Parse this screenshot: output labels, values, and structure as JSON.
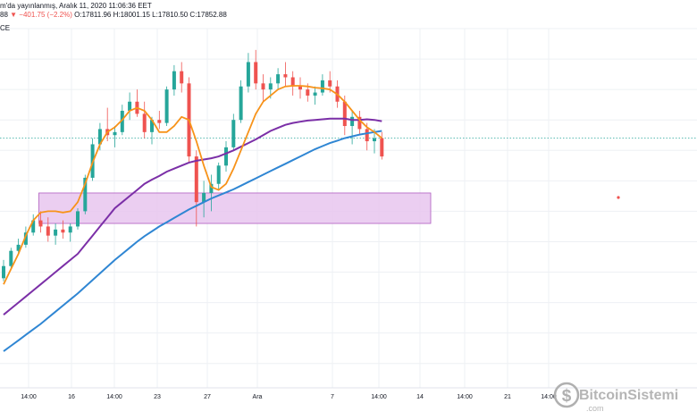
{
  "header": {
    "line1": "m'da yayınlanmış, Aralık 11, 2020 11:06:36 EET",
    "close_tail": "88",
    "change_arrow": "▼",
    "change": "−401.75 (−2.2%)",
    "ohlc": "O:17811.96 H:18001.15 L:17810.50 C:17852.88",
    "line3": "CE"
  },
  "colors": {
    "up": "#26a69a",
    "down": "#ef5350",
    "ma_fast": "#f7931a",
    "ma_mid": "#7b2fa7",
    "ma_slow": "#2f86d3",
    "zone_fill": "#e8c6ee",
    "zone_stroke": "#b05cc0",
    "price_line": "#26a69a"
  },
  "chart_data": {
    "type": "line",
    "x_tick_labels": [
      "14:00",
      "16",
      "14:00",
      "23",
      "27",
      "Ara",
      "7",
      "14:00",
      "14",
      "14:00",
      "21",
      "14:00"
    ],
    "candles": [
      [
        16400,
        16700,
        16350,
        16600
      ],
      [
        16600,
        16900,
        16550,
        16850
      ],
      [
        16850,
        17050,
        16800,
        16950
      ],
      [
        16950,
        17250,
        16900,
        17150
      ],
      [
        17150,
        17450,
        17100,
        17350
      ],
      [
        17350,
        17500,
        17150,
        17250
      ],
      [
        17250,
        17400,
        17000,
        17100
      ],
      [
        17100,
        17300,
        16950,
        17200
      ],
      [
        17200,
        17350,
        17050,
        17150
      ],
      [
        17150,
        17300,
        17000,
        17250
      ],
      [
        17250,
        17550,
        17200,
        17500
      ],
      [
        17500,
        18100,
        17450,
        18050
      ],
      [
        18050,
        18700,
        18000,
        18600
      ],
      [
        18600,
        18950,
        18500,
        18850
      ],
      [
        18850,
        19200,
        18650,
        18750
      ],
      [
        18750,
        18900,
        18550,
        18800
      ],
      [
        18800,
        19250,
        18750,
        19150
      ],
      [
        19150,
        19450,
        19000,
        19300
      ],
      [
        19300,
        19500,
        19050,
        19100
      ],
      [
        19100,
        19300,
        18700,
        18800
      ],
      [
        18800,
        19050,
        18600,
        19000
      ],
      [
        19000,
        19150,
        18850,
        18950
      ],
      [
        18950,
        19550,
        18900,
        19500
      ],
      [
        19500,
        19900,
        19400,
        19800
      ],
      [
        19800,
        19950,
        19450,
        19600
      ],
      [
        19600,
        19700,
        18300,
        18400
      ],
      [
        18400,
        18500,
        17250,
        17650
      ],
      [
        17650,
        18000,
        17400,
        17800
      ],
      [
        17800,
        18100,
        17500,
        17950
      ],
      [
        17950,
        18300,
        17850,
        18250
      ],
      [
        18250,
        18650,
        18150,
        18550
      ],
      [
        18550,
        19100,
        18500,
        19000
      ],
      [
        19000,
        19650,
        18950,
        19550
      ],
      [
        19550,
        20100,
        19450,
        19950
      ],
      [
        19950,
        20150,
        19500,
        19600
      ],
      [
        19600,
        19750,
        19300,
        19500
      ],
      [
        19500,
        19700,
        19350,
        19600
      ],
      [
        19600,
        19850,
        19500,
        19750
      ],
      [
        19750,
        19950,
        19550,
        19700
      ],
      [
        19700,
        19800,
        19400,
        19550
      ],
      [
        19550,
        19700,
        19350,
        19500
      ],
      [
        19500,
        19600,
        19300,
        19400
      ],
      [
        19400,
        19550,
        19250,
        19450
      ],
      [
        19450,
        19750,
        19400,
        19650
      ],
      [
        19650,
        19800,
        19450,
        19550
      ],
      [
        19550,
        19650,
        19200,
        19300
      ],
      [
        19300,
        19400,
        18750,
        18900
      ],
      [
        18900,
        19150,
        18600,
        19050
      ],
      [
        19050,
        19150,
        18750,
        18850
      ],
      [
        18850,
        18950,
        18500,
        18650
      ],
      [
        18650,
        18850,
        18450,
        18700
      ],
      [
        18700,
        18800,
        18350,
        18400
      ]
    ],
    "series": [
      {
        "values": [
          16300,
          16550,
          16800,
          17100,
          17350,
          17480,
          17500,
          17500,
          17480,
          17500,
          17650,
          17950,
          18300,
          18600,
          18800,
          18880,
          19000,
          19150,
          19200,
          19150,
          19000,
          18800,
          18800,
          18900,
          19050,
          19000,
          18650,
          18250,
          17900,
          17850,
          17950,
          18200,
          18500,
          18800,
          19100,
          19300,
          19400,
          19500,
          19550,
          19560,
          19560,
          19550,
          19530,
          19520,
          19500,
          19420,
          19300,
          19150,
          19000,
          18880,
          18800,
          18700
        ]
      },
      {
        "values": [
          15800,
          15900,
          16000,
          16100,
          16200,
          16300,
          16400,
          16500,
          16600,
          16700,
          16800,
          16950,
          17100,
          17250,
          17400,
          17550,
          17650,
          17750,
          17850,
          17950,
          18020,
          18080,
          18150,
          18200,
          18250,
          18300,
          18330,
          18350,
          18370,
          18400,
          18450,
          18500,
          18560,
          18620,
          18680,
          18750,
          18820,
          18870,
          18920,
          18950,
          18970,
          18990,
          19000,
          19010,
          19020,
          19020,
          19020,
          19000,
          19000,
          19010,
          19000,
          18980
        ]
      },
      {
        "values": [
          15200,
          15290,
          15380,
          15470,
          15560,
          15650,
          15750,
          15850,
          15950,
          16050,
          16150,
          16260,
          16370,
          16480,
          16590,
          16700,
          16800,
          16900,
          17000,
          17090,
          17170,
          17250,
          17320,
          17390,
          17460,
          17530,
          17590,
          17650,
          17710,
          17760,
          17810,
          17860,
          17920,
          17980,
          18040,
          18100,
          18160,
          18220,
          18280,
          18340,
          18400,
          18460,
          18520,
          18570,
          18620,
          18660,
          18700,
          18730,
          18760,
          18780,
          18800,
          18820
        ]
      }
    ],
    "zone": {
      "x_range": [
        5,
        94
      ],
      "y_range": [
        17300,
        17800
      ]
    },
    "last_price": 18700,
    "grid": true
  },
  "logo": {
    "text": "BitcoinSistemi",
    "suffix": ".com"
  }
}
